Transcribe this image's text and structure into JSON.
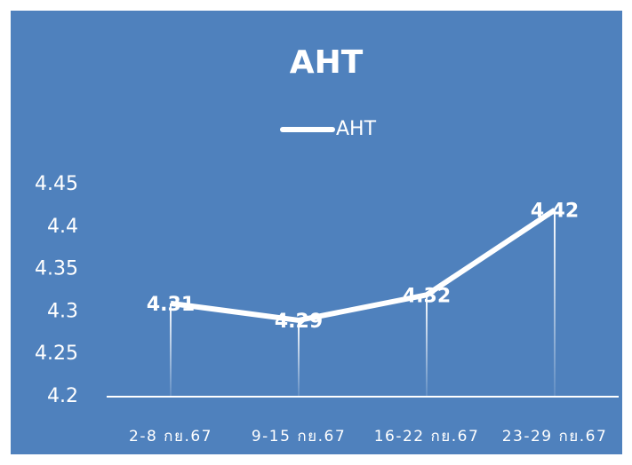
{
  "chart_data": {
    "type": "line",
    "title": "AHT",
    "categories": [
      "2-8 กย.67",
      "9-15 กย.67",
      "16-22 กย.67",
      "23-29 กย.67"
    ],
    "series": [
      {
        "name": "AHT",
        "color": "#ffffff",
        "values": [
          4.31,
          4.29,
          4.32,
          4.42
        ]
      }
    ],
    "ylim": [
      4.2,
      4.45
    ],
    "yticks": [
      4.2,
      4.25,
      4.3,
      4.35,
      4.4,
      4.45
    ],
    "grid": false,
    "legend": "top",
    "data_labels": true,
    "drop_lines": true
  }
}
